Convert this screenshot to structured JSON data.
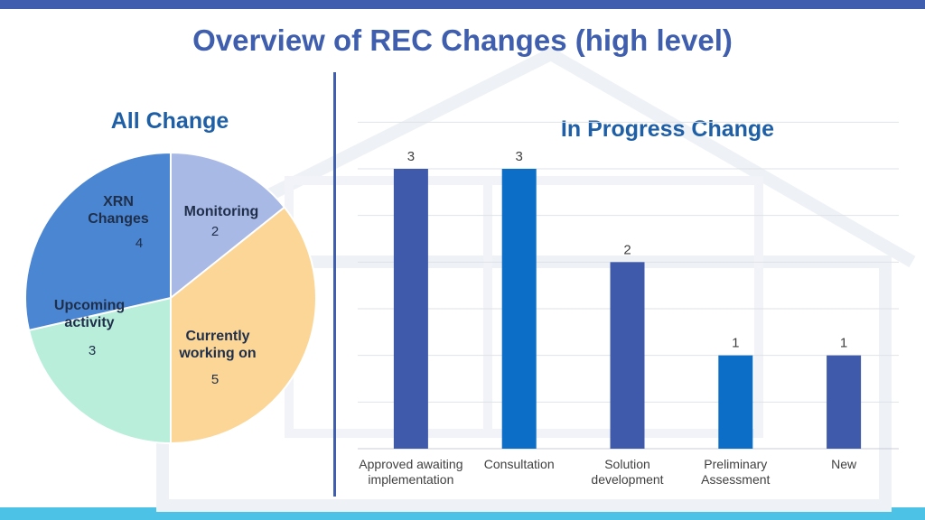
{
  "slide": {
    "title": "Overview of REC Changes (high level)"
  },
  "colors": {
    "top_bar": "#3f5fae",
    "bottom_bar": "#4cc3e6",
    "title": "#3f5fae",
    "subtitle": "#1f5fa6"
  },
  "chart_data": [
    {
      "type": "pie",
      "title": "All Change",
      "slices": [
        {
          "label": "Monitoring",
          "value": 2,
          "color": "#a9b9e6"
        },
        {
          "label": "Currently working on",
          "value": 5,
          "color": "#fbd697"
        },
        {
          "label": "Upcoming activity",
          "value": 3,
          "color": "#b9eedb"
        },
        {
          "label": "XRN Changes",
          "value": 4,
          "color": "#4b86d2"
        }
      ],
      "legend": "none"
    },
    {
      "type": "bar",
      "title": "In Progress Change",
      "categories": [
        "Approved awaiting implementation",
        "Consultation",
        "Solution development",
        "Preliminary Assessment",
        "New"
      ],
      "values": [
        3,
        3,
        2,
        1,
        1
      ],
      "bar_colors": [
        "#3f5aab",
        "#0c6ec6",
        "#3f5aab",
        "#0c6ec6",
        "#3f5aab"
      ],
      "ylim": [
        0,
        3.6
      ],
      "grid": true,
      "xlabel": "",
      "ylabel": ""
    }
  ]
}
